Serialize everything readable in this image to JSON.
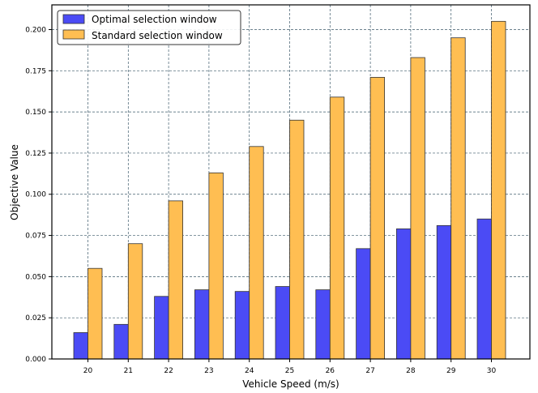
{
  "chart_data": {
    "type": "bar",
    "categories": [
      "20",
      "21",
      "22",
      "23",
      "24",
      "25",
      "26",
      "27",
      "28",
      "29",
      "30"
    ],
    "series": [
      {
        "name": "Optimal selection window",
        "color": "#4b4bf5",
        "values": [
          0.016,
          0.021,
          0.038,
          0.042,
          0.041,
          0.044,
          0.042,
          0.067,
          0.079,
          0.081,
          0.085
        ]
      },
      {
        "name": "Standard selection window",
        "color": "#ffbe52",
        "values": [
          0.055,
          0.07,
          0.096,
          0.113,
          0.129,
          0.145,
          0.159,
          0.171,
          0.183,
          0.195,
          0.205
        ]
      }
    ],
    "xlabel": "Vehicle Speed (m/s)",
    "ylabel": "Objective Value",
    "ylim": [
      0,
      0.215
    ],
    "yticks": [
      "0.000",
      "0.025",
      "0.050",
      "0.075",
      "0.100",
      "0.125",
      "0.150",
      "0.175",
      "0.200"
    ],
    "grid": true,
    "legend_position": "top-left"
  }
}
